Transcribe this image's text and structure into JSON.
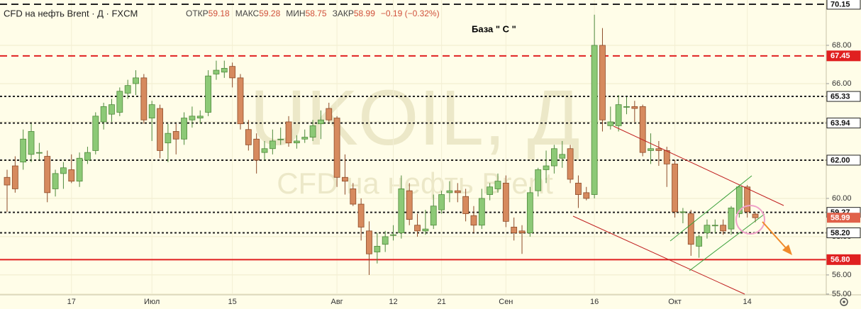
{
  "chart_data": {
    "type": "candlestick",
    "title": "CFD на нефть Brent · Д · FXCM",
    "ohlc_labels": [
      "ОТКР",
      "МАКС",
      "МИН",
      "ЗАКР"
    ],
    "change": "−0.19 (−0.32%)",
    "annotation": "База \" С \"",
    "watermark_symbol": "UKOIL, Д",
    "watermark_name": "CFD на нефть Brent",
    "up_color": "#8cc976",
    "down_color": "#d68a5e",
    "last_color": "#e0614a",
    "grid": true,
    "categories": [
      null,
      null,
      null,
      null,
      null,
      null,
      null,
      null,
      "17",
      null,
      null,
      null,
      null,
      null,
      null,
      null,
      null,
      null,
      "Июл",
      null,
      null,
      null,
      null,
      null,
      null,
      null,
      null,
      null,
      "15",
      null,
      null,
      null,
      null,
      null,
      null,
      null,
      null,
      null,
      null,
      null,
      null,
      "Авг",
      null,
      null,
      null,
      null,
      null,
      null,
      "12",
      null,
      null,
      null,
      null,
      null,
      "21",
      null,
      null,
      null,
      null,
      null,
      null,
      null,
      "Сен",
      null,
      null,
      null,
      null,
      null,
      null,
      null,
      null,
      null,
      null,
      "16",
      null,
      null,
      null,
      null,
      null,
      null,
      null,
      null,
      null,
      "Окт",
      null,
      null,
      null,
      null,
      null,
      null,
      null,
      null,
      "14",
      null
    ],
    "open": [
      61.1,
      61.7,
      61.9,
      62.3,
      62.4,
      62.2,
      60.5,
      61.3,
      61.5,
      60.9,
      62.0,
      62.5,
      64.0,
      64.4,
      64.5,
      65.5,
      66.0,
      66.3,
      64.2,
      64.7,
      62.9,
      63.5,
      63.1,
      64.1,
      64.2,
      64.5,
      66.5,
      66.6,
      66.9,
      66.3,
      63.6,
      63.1,
      62.4,
      62.6,
      63.1,
      64.0,
      62.9,
      63.1,
      63.2,
      63.9,
      64.7,
      64.2,
      61.1,
      60.5,
      59.7,
      58.3,
      57.2,
      57.6,
      58.1,
      58.2,
      60.4,
      58.6,
      58.3,
      58.6,
      59.4,
      60.3,
      60.4,
      60.1,
      59.1,
      58.6,
      60.2,
      60.5,
      60.8,
      58.5,
      58.3,
      58.2,
      60.4,
      61.5,
      61.7,
      62.1,
      62.6,
      60.8,
      60.3,
      60.2,
      68.0,
      63.8,
      63.8,
      64.8,
      64.8,
      64.8,
      62.5,
      62.6,
      62.5,
      61.8,
      59.3,
      59.2,
      57.5,
      58.2,
      58.6,
      58.6,
      58.4,
      59.2,
      60.6,
      59.18
    ],
    "high": [
      61.5,
      62.2,
      63.6,
      63.9,
      62.9,
      62.5,
      61.5,
      61.9,
      62.3,
      62.4,
      62.7,
      64.5,
      65.0,
      65.2,
      65.8,
      66.2,
      66.7,
      66.5,
      65.1,
      64.9,
      63.9,
      63.9,
      64.5,
      64.8,
      64.6,
      66.7,
      67.2,
      67.2,
      67.1,
      66.5,
      64.1,
      63.4,
      63.0,
      63.6,
      63.7,
      64.3,
      63.3,
      63.6,
      64.1,
      64.6,
      65.0,
      64.3,
      62.3,
      60.8,
      60.0,
      58.8,
      58.2,
      58.3,
      58.6,
      61.2,
      60.8,
      59.2,
      59.4,
      60.2,
      60.4,
      60.9,
      60.8,
      60.5,
      59.6,
      60.5,
      60.8,
      61.3,
      61.2,
      59.0,
      58.6,
      60.6,
      61.6,
      62.5,
      62.8,
      63.0,
      62.8,
      61.2,
      60.6,
      69.6,
      68.9,
      64.8,
      65.4,
      65.3,
      65.1,
      64.9,
      63.4,
      63.0,
      62.7,
      62.0,
      59.5,
      59.4,
      58.1,
      58.9,
      58.9,
      58.9,
      59.6,
      60.7,
      60.7,
      59.28
    ],
    "low": [
      59.3,
      60.3,
      61.5,
      61.9,
      62.0,
      59.8,
      60.1,
      60.5,
      60.8,
      60.6,
      61.8,
      62.3,
      63.6,
      64.0,
      64.3,
      65.2,
      65.4,
      63.9,
      63.0,
      62.1,
      61.9,
      62.3,
      62.8,
      63.7,
      63.9,
      64.3,
      66.2,
      66.3,
      65.8,
      63.6,
      62.5,
      61.3,
      62.0,
      62.3,
      62.8,
      62.7,
      62.6,
      62.9,
      63.0,
      63.1,
      64.0,
      60.6,
      60.2,
      59.6,
      57.8,
      56.0,
      56.6,
      57.2,
      57.8,
      57.9,
      58.6,
      58.0,
      58.1,
      58.4,
      59.2,
      59.8,
      59.8,
      58.8,
      58.2,
      58.4,
      59.9,
      60.3,
      58.5,
      57.8,
      57.1,
      58.0,
      60.1,
      60.8,
      61.3,
      61.6,
      60.8,
      59.5,
      59.9,
      60.0,
      63.5,
      63.6,
      63.5,
      64.4,
      64.0,
      62.2,
      61.8,
      61.7,
      60.6,
      59.0,
      58.7,
      57.0,
      56.9,
      57.9,
      58.2,
      58.1,
      58.1,
      59.0,
      59.0,
      58.75
    ],
    "close": [
      60.7,
      60.5,
      63.1,
      63.5,
      62.4,
      60.3,
      61.3,
      61.6,
      60.9,
      62.1,
      62.4,
      64.3,
      64.8,
      64.9,
      65.6,
      65.9,
      66.3,
      64.1,
      64.9,
      62.5,
      63.4,
      63.1,
      64.2,
      64.3,
      64.3,
      66.4,
      66.7,
      66.8,
      66.3,
      63.9,
      62.8,
      62.0,
      62.6,
      63.0,
      63.1,
      62.9,
      63.0,
      63.2,
      63.8,
      64.1,
      64.1,
      61.1,
      60.9,
      59.7,
      58.5,
      57.1,
      57.5,
      58.0,
      58.1,
      60.5,
      58.9,
      58.3,
      58.4,
      59.6,
      60.2,
      60.4,
      60.3,
      59.2,
      58.6,
      60.0,
      60.6,
      60.9,
      58.8,
      58.2,
      58.2,
      60.3,
      61.5,
      61.7,
      62.6,
      62.3,
      61.0,
      60.2,
      60.0,
      68.0,
      64.1,
      64.0,
      64.9,
      64.8,
      64.7,
      62.4,
      62.6,
      62.5,
      61.8,
      59.3,
      59.3,
      57.6,
      58.0,
      58.6,
      58.6,
      58.3,
      59.5,
      60.6,
      59.3,
      58.99
    ],
    "ylim": [
      54.96,
      70.37
    ],
    "yticks": [
      {
        "value": 55,
        "label": "55.00"
      },
      {
        "value": 56,
        "label": "56.00"
      },
      {
        "value": 58,
        "label": "58.00"
      },
      {
        "value": 60,
        "label": "60.00"
      },
      {
        "value": 62,
        "label": "62.00"
      },
      {
        "value": 64,
        "label": "64.00"
      },
      {
        "value": 66,
        "label": "66.00"
      },
      {
        "value": 68,
        "label": "68.00"
      }
    ],
    "levels": [
      {
        "price": 70.15,
        "color": "#222222",
        "style": "dashed"
      },
      {
        "price": 67.45,
        "color": "#e02020",
        "style": "dashed"
      },
      {
        "price": 65.33,
        "color": "#222222",
        "style": "dotted"
      },
      {
        "price": 63.94,
        "color": "#222222",
        "style": "dotted"
      },
      {
        "price": {
          "value": 62,
          "label": "62.00"
        },
        "color": "#222222",
        "style": "dotted"
      },
      {
        "price": 59.27,
        "color": "#222222",
        "style": "dotted"
      },
      {
        "price": {
          "value": 58.2,
          "label": "58.20"
        },
        "color": "#222222",
        "style": "dotted"
      },
      {
        "price": {
          "value": 56.8,
          "label": "56.80"
        },
        "color": "#e02020",
        "style": "solid"
      }
    ]
  }
}
